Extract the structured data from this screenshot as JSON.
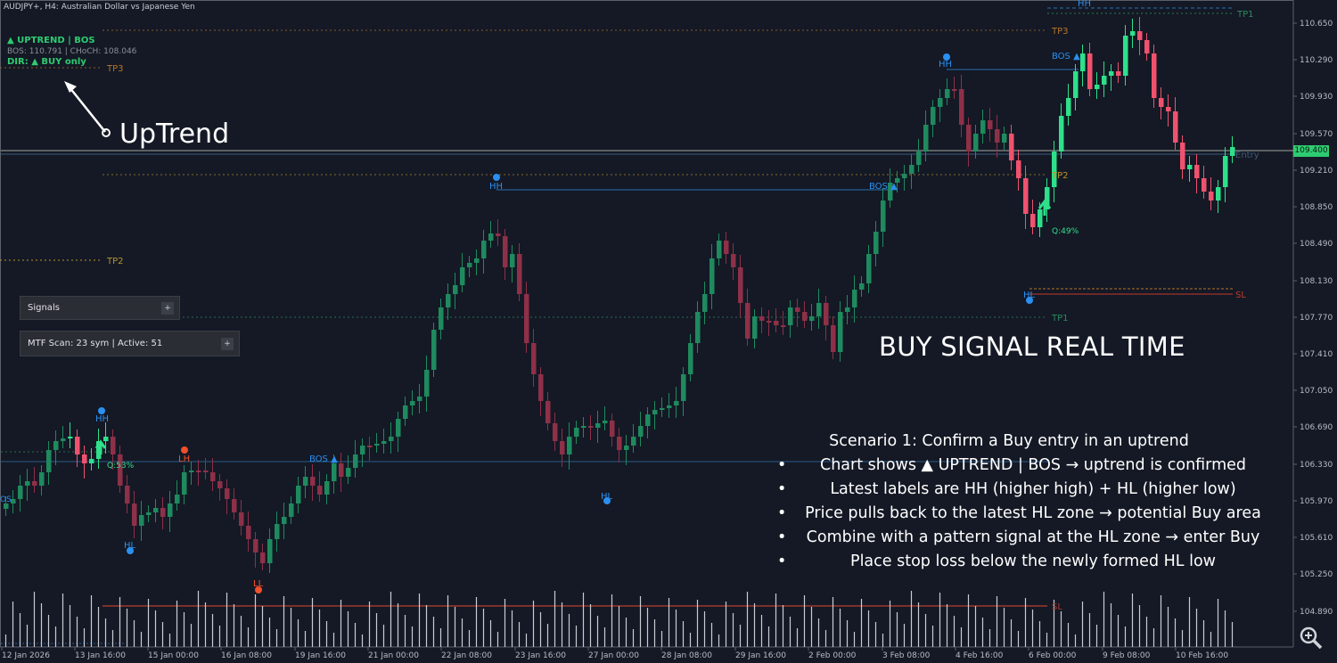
{
  "header": {
    "title": "AUDJPY+, H4:  Australian Dollar vs Japanese Yen"
  },
  "status": {
    "line1": "▲ UPTREND | BOS",
    "line2": "BOS: 110.791  |  CHoCH: 108.046",
    "line3": "DIR: ▲ BUY only"
  },
  "annotation": {
    "uptrend": "UpTrend"
  },
  "panels": {
    "signals": {
      "label": "Signals",
      "button": "+"
    },
    "mtf": {
      "label": "MTF Scan: 23 sym | Active: 51",
      "button": "+"
    }
  },
  "big_title": "BUY SIGNAL REAL TIME",
  "scenario": {
    "title": "Scenario 1: Confirm a Buy entry in an uptrend",
    "items": [
      "Chart shows ▲ UPTREND | BOS → uptrend is confirmed",
      "Latest labels are HH (higher high) + HL (higher low)",
      "Price pulls back to the latest HL zone → potential Buy area",
      "Combine with a pattern signal at the HL zone → enter Buy",
      "Place stop loss below the newly formed HL low"
    ],
    "bullet": "•"
  },
  "current_price": "109.400",
  "price_axis": [
    "110.650",
    "110.290",
    "109.930",
    "109.570",
    "109.210",
    "108.850",
    "108.490",
    "108.130",
    "107.770",
    "107.410",
    "107.050",
    "106.690",
    "106.330",
    "105.970",
    "105.610",
    "105.250",
    "104.890"
  ],
  "time_axis": [
    "12 Jan 2026",
    "13 Jan 16:00",
    "15 Jan 00:00",
    "16 Jan 08:00",
    "19 Jan 16:00",
    "21 Jan 00:00",
    "22 Jan 08:00",
    "23 Jan 16:00",
    "27 Jan 00:00",
    "28 Jan 08:00",
    "29 Jan 16:00",
    "2 Feb 00:00",
    "3 Feb 08:00",
    "4 Feb 16:00",
    "6 Feb 00:00",
    "9 Feb 08:00",
    "10 Feb 16:00"
  ],
  "chart_labels": {
    "tp1": "TP1",
    "tp2": "TP2",
    "tp3": "TP3",
    "sl": "SL",
    "entry": "Entry",
    "hh": "HH",
    "hl": "HL",
    "lh": "LH",
    "ll": "LL",
    "bos": "BOS ▲",
    "os": "OS",
    "q49": "Q:49%",
    "q53": "Q:53%"
  },
  "colors": {
    "bg": "#141925",
    "bull": "#1f8a5e",
    "bear": "#8e3048",
    "bull_bright": "#2ee08a",
    "bear_bright": "#f0526e",
    "level_orange": "#b8742a",
    "level_green": "#2d7a4d",
    "bos_line": "#2a6fb0",
    "pivot_blue": "#2b8ff0",
    "pivot_red": "#f0502b"
  },
  "zoom_icon": "magnifier-zoom-icon"
}
